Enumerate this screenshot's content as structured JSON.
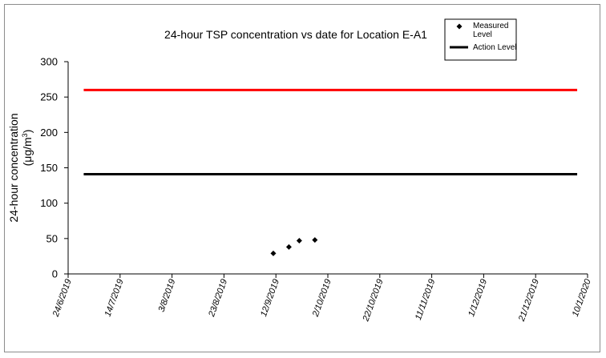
{
  "chart_data": {
    "type": "scatter",
    "title": "24-hour TSP concentration vs date for Location E-A1",
    "ylabel_line1": "24-hour concentration",
    "ylabel_line2_prefix": "(μg/m",
    "ylabel_line2_sup": "3",
    "ylabel_line2_suffix": ")",
    "xlabel": "",
    "ylim": [
      0,
      300
    ],
    "y_ticks": [
      0,
      50,
      100,
      150,
      200,
      250,
      300
    ],
    "xlim": [
      "2019-06-24",
      "2020-01-10"
    ],
    "x_ticks": [
      "2019-06-24",
      "2019-07-14",
      "2019-08-03",
      "2019-08-23",
      "2019-09-12",
      "2019-10-02",
      "2019-10-22",
      "2019-11-11",
      "2019-12-01",
      "2019-12-21",
      "2020-01-10"
    ],
    "x_tick_labels": [
      "24/6/2019",
      "14/7/2019",
      "3/8/2019",
      "23/8/2019",
      "12/9/2019",
      "2/10/2019",
      "22/10/2019",
      "11/11/2019",
      "1/12/2019",
      "21/12/2019",
      "10/1/2020"
    ],
    "series": [
      {
        "name": "Measured Level",
        "kind": "marker",
        "marker": "diamond",
        "color": "#000000",
        "points": [
          {
            "x": "2019-09-11",
            "y": 29
          },
          {
            "x": "2019-09-17",
            "y": 38
          },
          {
            "x": "2019-09-21",
            "y": 47
          },
          {
            "x": "2019-09-27",
            "y": 48
          }
        ]
      },
      {
        "name": "Action Level",
        "kind": "line",
        "color": "#000000",
        "points": [
          {
            "x": "2019-06-30",
            "y": 141
          },
          {
            "x": "2020-01-06",
            "y": 141
          }
        ]
      },
      {
        "kind": "line",
        "color": "#ff0000",
        "points": [
          {
            "x": "2019-06-30",
            "y": 260
          },
          {
            "x": "2020-01-06",
            "y": 260
          }
        ]
      }
    ],
    "legend_position": "top-right",
    "grid": false
  }
}
